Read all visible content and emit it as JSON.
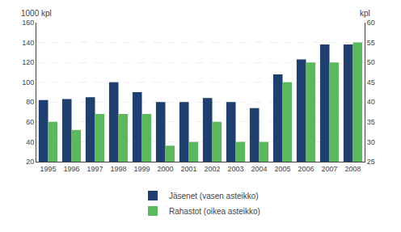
{
  "chart_data": {
    "type": "bar",
    "categories": [
      1995,
      1996,
      1997,
      1998,
      1999,
      2000,
      2001,
      2002,
      2003,
      2004,
      2005,
      2006,
      2007,
      2008
    ],
    "series": [
      {
        "name": "Jäsenet (vasen asteikko)",
        "color": "#1f3f6e",
        "values": [
          82,
          83,
          85,
          100,
          90,
          80,
          80,
          84,
          80,
          74,
          108,
          123,
          138,
          138
        ]
      },
      {
        "name": "Rahastot (oikea asteikko)",
        "color": "#5cb85c",
        "axis": "y2",
        "values": [
          35,
          33,
          37,
          37,
          37,
          29,
          30,
          35,
          30,
          30,
          45,
          50,
          50,
          55
        ]
      }
    ],
    "ylabel": "1000 kpl",
    "y2label": "kpl",
    "ylim": [
      20,
      160
    ],
    "yticks": [
      20,
      40,
      60,
      80,
      100,
      120,
      140,
      160
    ],
    "y2lim": [
      25,
      60
    ],
    "y2ticks": [
      25,
      30,
      35,
      40,
      45,
      50,
      55,
      60
    ],
    "grid": true,
    "legend": "bottom"
  }
}
